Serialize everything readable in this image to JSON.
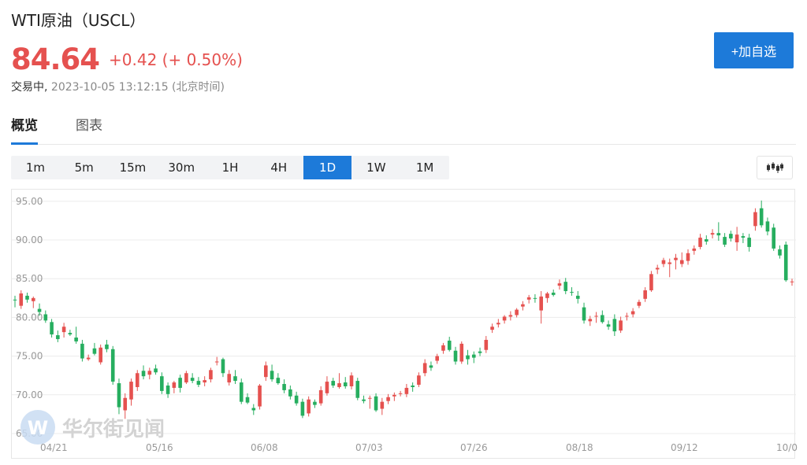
{
  "header": {
    "title": "WTI原油（USCL）",
    "price": "84.64",
    "change": "+0.42 (+ 0.50%)",
    "status": "交易中,",
    "timestamp": "2023-10-05 13:12:15 (北京时间)",
    "add_button": "+加自选"
  },
  "tabs": [
    {
      "label": "概览"
    },
    {
      "label": "图表"
    }
  ],
  "periods": [
    {
      "label": "1m"
    },
    {
      "label": "5m"
    },
    {
      "label": "15m"
    },
    {
      "label": "30m"
    },
    {
      "label": "1H"
    },
    {
      "label": "4H"
    },
    {
      "label": "1D"
    },
    {
      "label": "1W"
    },
    {
      "label": "1M"
    }
  ],
  "selected_period": "1D",
  "watermark": {
    "text": "华尔街见闻"
  },
  "colors": {
    "up": "#e5514f",
    "down": "#26ae5f",
    "accent": "#1d7ad9"
  },
  "icons": {
    "chart_type": "candlestick-icon",
    "logo": "wallstreetcn-logo-icon"
  },
  "chart_data": {
    "type": "candlestick",
    "ylim": [
      65,
      96
    ],
    "yticks": [
      "65.00",
      "70.00",
      "75.00",
      "80.00",
      "85.00",
      "90.00",
      "95.00"
    ],
    "xticks": [
      "04/21",
      "05/16",
      "06/08",
      "07/03",
      "07/26",
      "08/18",
      "09/12",
      "10/0"
    ],
    "grid": true,
    "candles": [
      [
        82.3,
        82.8,
        81.3,
        82.2
      ],
      [
        81.5,
        83.5,
        81.1,
        83.1
      ],
      [
        82.8,
        83.2,
        81.9,
        82.3
      ],
      [
        82.1,
        82.7,
        81.2,
        82.5
      ],
      [
        81.1,
        81.8,
        80.2,
        80.7
      ],
      [
        80.4,
        80.9,
        79.3,
        79.6
      ],
      [
        79.4,
        79.8,
        77.4,
        77.8
      ],
      [
        77.7,
        78.3,
        76.8,
        77.2
      ],
      [
        78.1,
        79.3,
        77.4,
        78.8
      ],
      [
        78.0,
        78.4,
        77.6,
        77.8
      ],
      [
        77.4,
        78.8,
        76.6,
        76.9
      ],
      [
        76.6,
        77.1,
        74.3,
        74.7
      ],
      [
        74.6,
        75.2,
        74.4,
        74.8
      ],
      [
        76.0,
        76.7,
        75.1,
        75.3
      ],
      [
        74.2,
        76.5,
        73.9,
        76.1
      ],
      [
        76.5,
        77.1,
        75.5,
        75.9
      ],
      [
        75.9,
        76.3,
        71.3,
        71.7
      ],
      [
        71.5,
        72.1,
        67.5,
        68.4
      ],
      [
        68.0,
        70.2,
        66.9,
        69.6
      ],
      [
        69.4,
        72.1,
        68.6,
        71.7
      ],
      [
        71.0,
        73.2,
        70.5,
        72.8
      ],
      [
        73.1,
        73.8,
        72.0,
        72.4
      ],
      [
        72.6,
        73.5,
        72.0,
        73.1
      ],
      [
        73.4,
        73.9,
        72.6,
        72.9
      ],
      [
        72.4,
        72.9,
        70.1,
        70.5
      ],
      [
        71.2,
        71.6,
        69.6,
        70.1
      ],
      [
        70.9,
        71.8,
        70.2,
        71.6
      ],
      [
        72.2,
        72.6,
        70.3,
        70.9
      ],
      [
        71.6,
        73.1,
        71.4,
        72.8
      ],
      [
        72.2,
        72.8,
        71.5,
        71.8
      ],
      [
        71.8,
        72.3,
        71.0,
        71.3
      ],
      [
        71.6,
        72.4,
        71.1,
        71.9
      ],
      [
        72.0,
        73.5,
        71.6,
        73.2
      ],
      [
        74.2,
        74.9,
        73.8,
        74.3
      ],
      [
        74.6,
        74.8,
        72.3,
        72.8
      ],
      [
        71.6,
        73.2,
        71.2,
        72.7
      ],
      [
        72.4,
        73.2,
        71.4,
        71.8
      ],
      [
        71.6,
        72.1,
        68.8,
        69.1
      ],
      [
        69.7,
        70.2,
        68.8,
        69.0
      ],
      [
        68.3,
        68.8,
        67.4,
        68.0
      ],
      [
        68.5,
        71.4,
        68.1,
        71.2
      ],
      [
        72.3,
        74.3,
        71.8,
        73.8
      ],
      [
        73.1,
        73.9,
        71.7,
        72.0
      ],
      [
        72.2,
        72.8,
        71.3,
        71.5
      ],
      [
        71.4,
        72.0,
        70.2,
        70.6
      ],
      [
        70.7,
        71.2,
        69.4,
        69.8
      ],
      [
        69.9,
        70.4,
        68.6,
        68.9
      ],
      [
        69.1,
        69.5,
        67.0,
        67.3
      ],
      [
        67.6,
        69.8,
        67.2,
        69.4
      ],
      [
        69.1,
        69.4,
        68.3,
        68.7
      ],
      [
        68.9,
        71.1,
        68.6,
        70.6
      ],
      [
        70.2,
        72.4,
        69.9,
        71.7
      ],
      [
        71.8,
        72.2,
        70.9,
        71.2
      ],
      [
        71.0,
        72.8,
        70.8,
        71.5
      ],
      [
        71.6,
        72.3,
        70.8,
        71.1
      ],
      [
        71.1,
        72.9,
        70.7,
        72.5
      ],
      [
        71.8,
        72.2,
        69.3,
        69.6
      ],
      [
        69.4,
        69.9,
        68.9,
        69.2
      ],
      [
        69.5,
        69.9,
        68.2,
        69.6
      ],
      [
        69.8,
        70.2,
        67.8,
        68.0
      ],
      [
        68.2,
        69.6,
        67.4,
        69.1
      ],
      [
        69.2,
        70.1,
        68.8,
        69.7
      ],
      [
        69.8,
        70.3,
        69.2,
        70.0
      ],
      [
        70.1,
        70.5,
        69.8,
        70.2
      ],
      [
        70.1,
        71.4,
        69.7,
        70.9
      ],
      [
        71.2,
        71.6,
        70.4,
        71.0
      ],
      [
        71.3,
        72.9,
        71.0,
        72.5
      ],
      [
        72.8,
        74.6,
        72.4,
        74.1
      ],
      [
        73.8,
        74.3,
        73.1,
        73.5
      ],
      [
        74.4,
        75.3,
        74.0,
        75.0
      ],
      [
        75.7,
        76.7,
        75.3,
        76.4
      ],
      [
        77.0,
        77.5,
        75.6,
        75.8
      ],
      [
        75.7,
        76.2,
        73.9,
        74.3
      ],
      [
        74.3,
        76.9,
        74.0,
        76.6
      ],
      [
        75.1,
        75.8,
        73.9,
        74.6
      ],
      [
        75.2,
        75.6,
        74.1,
        74.8
      ],
      [
        75.6,
        76.1,
        75.0,
        75.4
      ],
      [
        75.8,
        77.6,
        75.4,
        77.1
      ],
      [
        78.4,
        79.2,
        78.0,
        78.8
      ],
      [
        79.1,
        79.8,
        78.7,
        79.3
      ],
      [
        79.6,
        80.3,
        79.2,
        80.1
      ],
      [
        80.1,
        80.8,
        79.6,
        80.3
      ],
      [
        80.3,
        81.2,
        80.0,
        81.0
      ],
      [
        81.4,
        82.1,
        80.9,
        81.7
      ],
      [
        82.3,
        82.9,
        81.8,
        82.6
      ],
      [
        82.5,
        83.0,
        81.9,
        82.4
      ],
      [
        80.9,
        83.4,
        79.2,
        82.7
      ],
      [
        82.5,
        83.3,
        81.9,
        83.1
      ],
      [
        83.2,
        83.6,
        82.7,
        82.9
      ],
      [
        84.1,
        84.9,
        83.6,
        84.4
      ],
      [
        84.6,
        85.1,
        83.0,
        83.4
      ],
      [
        83.3,
        83.9,
        82.8,
        83.2
      ],
      [
        82.8,
        83.4,
        81.8,
        82.4
      ],
      [
        81.3,
        81.9,
        79.2,
        79.6
      ],
      [
        79.5,
        80.2,
        78.9,
        79.8
      ],
      [
        80.1,
        80.7,
        79.3,
        80.2
      ],
      [
        80.3,
        80.9,
        79.2,
        79.4
      ],
      [
        79.1,
        79.6,
        78.4,
        78.8
      ],
      [
        79.8,
        80.4,
        77.6,
        78.2
      ],
      [
        78.3,
        80.1,
        78.0,
        79.6
      ],
      [
        80.1,
        80.6,
        79.6,
        80.2
      ],
      [
        80.4,
        81.2,
        80.0,
        80.8
      ],
      [
        81.5,
        82.3,
        81.2,
        82.0
      ],
      [
        82.4,
        83.9,
        82.0,
        83.5
      ],
      [
        83.5,
        86.0,
        83.3,
        85.6
      ],
      [
        86.2,
        86.8,
        85.6,
        86.4
      ],
      [
        86.9,
        87.7,
        86.5,
        87.4
      ],
      [
        86.9,
        87.6,
        85.2,
        87.1
      ],
      [
        87.4,
        88.2,
        86.2,
        87.7
      ],
      [
        86.9,
        88.4,
        86.5,
        87.4
      ],
      [
        87.3,
        88.8,
        86.8,
        88.3
      ],
      [
        88.6,
        89.3,
        88.1,
        88.9
      ],
      [
        89.1,
        90.8,
        88.8,
        90.3
      ],
      [
        90.1,
        90.6,
        89.4,
        89.8
      ],
      [
        90.7,
        91.4,
        90.2,
        90.9
      ],
      [
        90.9,
        92.3,
        89.9,
        90.6
      ],
      [
        90.4,
        90.9,
        89.1,
        89.4
      ],
      [
        90.8,
        91.2,
        89.8,
        90.2
      ],
      [
        89.7,
        91.7,
        88.6,
        90.7
      ],
      [
        90.5,
        90.9,
        89.6,
        90.3
      ],
      [
        90.3,
        90.8,
        88.5,
        89.1
      ],
      [
        91.8,
        94.1,
        91.2,
        93.6
      ],
      [
        94.1,
        95.1,
        91.6,
        91.9
      ],
      [
        92.4,
        92.9,
        90.6,
        91.1
      ],
      [
        91.6,
        92.1,
        88.6,
        88.9
      ],
      [
        88.8,
        89.3,
        87.6,
        88.0
      ],
      [
        89.4,
        89.8,
        84.6,
        84.8
      ],
      [
        84.6,
        85.0,
        84.1,
        84.64
      ]
    ]
  }
}
